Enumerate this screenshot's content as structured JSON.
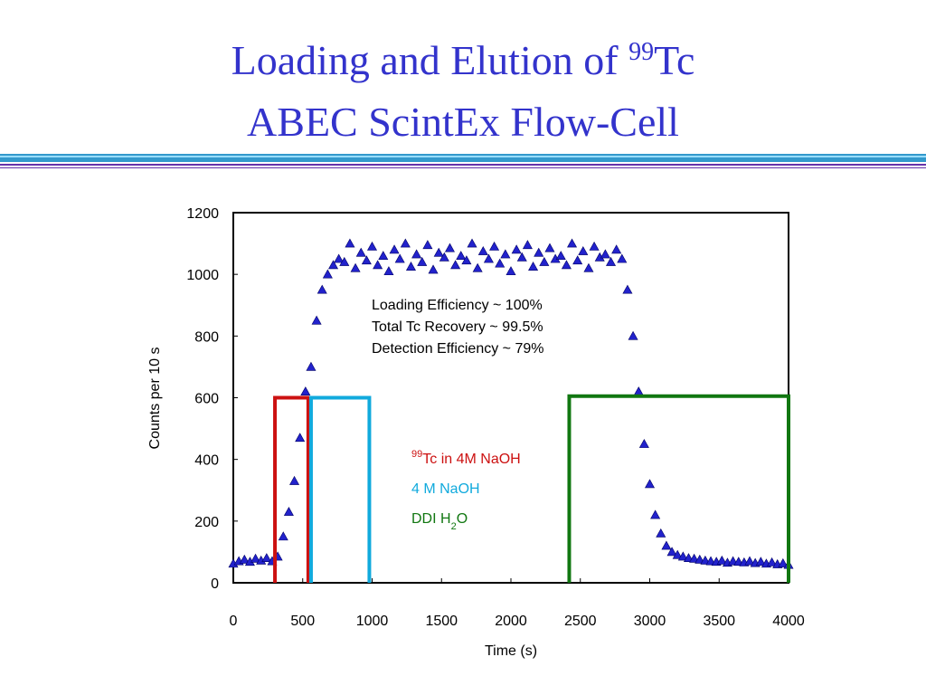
{
  "chart_data": {
    "type": "scatter",
    "title_line1": "Loading and Elution of ",
    "title_sup": "99",
    "title_end": "Tc",
    "title_line2": "ABEC ScintEx Flow-Cell",
    "x_label": "Time (s)",
    "y_label": "Counts per 10 s",
    "xlim": [
      0,
      4000
    ],
    "xticks": [
      0,
      500,
      1000,
      1500,
      2000,
      2500,
      3000,
      3500,
      4000
    ],
    "ylim": [
      0,
      1200
    ],
    "yticks": [
      0,
      200,
      400,
      600,
      800,
      1000,
      1200
    ],
    "annotations": [
      "Loading Efficiency ~ 100%",
      "Total Tc Recovery ~ 99.5%",
      "Detection Efficiency ~ 79%"
    ],
    "regions": [
      {
        "sup": "99",
        "name": "Tc in 4M NaOH",
        "color": "#cc1111",
        "x": [
          300,
          540
        ],
        "top": 600
      },
      {
        "name": "4 M NaOH",
        "color": "#11aadd",
        "x": [
          560,
          980
        ],
        "top": 600
      },
      {
        "name": "DDI H",
        "sub": "2",
        "end": "O",
        "color": "#117711",
        "x": [
          2420,
          4000
        ],
        "top": 605
      }
    ],
    "series": [
      {
        "name": "Counts",
        "color": "#2222cc",
        "x": [
          0,
          40,
          80,
          120,
          160,
          200,
          240,
          280,
          320,
          360,
          400,
          440,
          480,
          520,
          560,
          600,
          640,
          680,
          720,
          760,
          800,
          840,
          880,
          920,
          960,
          1000,
          1040,
          1080,
          1120,
          1160,
          1200,
          1240,
          1280,
          1320,
          1360,
          1400,
          1440,
          1480,
          1520,
          1560,
          1600,
          1640,
          1680,
          1720,
          1760,
          1800,
          1840,
          1880,
          1920,
          1960,
          2000,
          2040,
          2080,
          2120,
          2160,
          2200,
          2240,
          2280,
          2320,
          2360,
          2400,
          2440,
          2480,
          2520,
          2560,
          2600,
          2640,
          2680,
          2720,
          2760,
          2800,
          2840,
          2880,
          2920,
          2960,
          3000,
          3040,
          3080,
          3120,
          3160,
          3200,
          3240,
          3280,
          3320,
          3360,
          3400,
          3440,
          3480,
          3520,
          3560,
          3600,
          3640,
          3680,
          3720,
          3760,
          3800,
          3840,
          3880,
          3920,
          3960,
          4000
        ],
        "values": [
          62,
          70,
          75,
          68,
          78,
          72,
          80,
          70,
          85,
          150,
          230,
          330,
          470,
          620,
          700,
          850,
          950,
          1000,
          1030,
          1050,
          1040,
          1100,
          1020,
          1070,
          1045,
          1090,
          1030,
          1060,
          1010,
          1080,
          1050,
          1100,
          1025,
          1065,
          1040,
          1095,
          1015,
          1070,
          1055,
          1085,
          1030,
          1060,
          1045,
          1100,
          1020,
          1075,
          1050,
          1090,
          1035,
          1065,
          1010,
          1080,
          1055,
          1095,
          1025,
          1070,
          1040,
          1085,
          1050,
          1060,
          1030,
          1100,
          1045,
          1075,
          1020,
          1090,
          1055,
          1065,
          1040,
          1080,
          1050,
          950,
          800,
          620,
          450,
          320,
          220,
          160,
          120,
          100,
          90,
          85,
          80,
          78,
          75,
          72,
          70,
          68,
          72,
          65,
          70,
          68,
          66,
          70,
          64,
          68,
          62,
          66,
          60,
          63,
          58
        ]
      }
    ]
  }
}
